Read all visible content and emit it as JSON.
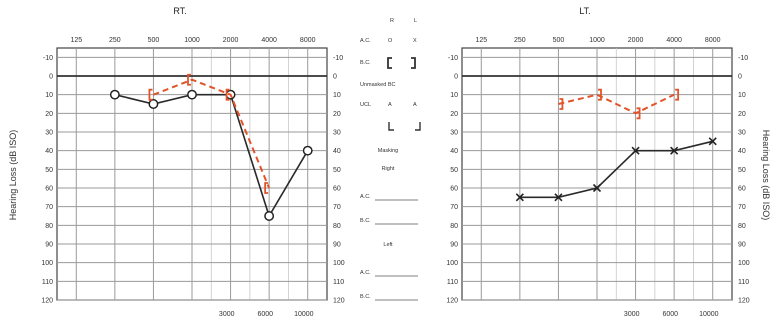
{
  "colors": {
    "bone_conduction": "#e1542a",
    "air_conduction": "#2a2a2a",
    "grid": "#9a9a9a"
  },
  "legend": {
    "col_right": "R",
    "col_left": "L",
    "ac_label": "A.C.",
    "ac_right_symbol": "O",
    "ac_left_symbol": "X",
    "bc_label": "B.C.",
    "bc_right_symbol": "[",
    "bc_left_symbol": "]",
    "unmasked_label": "Unmasked BC",
    "ucl_label": "UCL",
    "aided_right_symbol": "A",
    "aided_left_symbol": "A",
    "masking_title": "Masking",
    "right_label": "Right",
    "left_label": "Left",
    "ac_blank": "A.C.",
    "bc_blank": "B.C."
  },
  "chart_data": [
    {
      "type": "line",
      "title": "RT.",
      "ylabel": "Hearing Loss (dB ISO)",
      "x_top_ticks": [
        "125",
        "250",
        "500",
        "1000",
        "2000",
        "4000",
        "8000"
      ],
      "x_bottom_ticks": [
        "3000",
        "6000",
        "10000"
      ],
      "y_ticks": [
        "-10",
        "0",
        "10",
        "20",
        "30",
        "40",
        "50",
        "60",
        "70",
        "80",
        "90",
        "100",
        "110",
        "120"
      ],
      "right_y_ticks": [
        "-10",
        "0",
        "10",
        "20",
        "30",
        "40",
        "50",
        "60",
        "70",
        "80",
        "90",
        "100",
        "110",
        "120"
      ],
      "ylim": [
        -10,
        120
      ],
      "y_inverted": true,
      "x_scale": "log2",
      "grid": true,
      "series": [
        {
          "id": "ac",
          "marker": "circle",
          "x": [
            250,
            500,
            1000,
            2000,
            4000,
            8000
          ],
          "y": [
            10,
            15,
            10,
            10,
            75,
            40
          ]
        },
        {
          "id": "bc",
          "marker": "bracket",
          "x": [
            500,
            1000,
            2000,
            4000
          ],
          "y": [
            10,
            2,
            10,
            60
          ]
        }
      ]
    },
    {
      "type": "line",
      "title": "LT.",
      "ylabel": "Hearing Loss (dB ISO)",
      "x_top_ticks": [
        "125",
        "250",
        "500",
        "1000",
        "2000",
        "4000",
        "8000"
      ],
      "x_bottom_ticks": [
        "3000",
        "6000",
        "10000"
      ],
      "y_ticks": [
        "-10",
        "0",
        "10",
        "20",
        "30",
        "40",
        "50",
        "60",
        "70",
        "80",
        "90",
        "100",
        "110",
        "120"
      ],
      "right_y_ticks": [
        "-10",
        "0",
        "10",
        "20",
        "30",
        "40",
        "50",
        "60",
        "70",
        "80",
        "90",
        "100",
        "110",
        "120"
      ],
      "ylim": [
        -10,
        120
      ],
      "y_inverted": true,
      "x_scale": "log2",
      "grid": true,
      "series": [
        {
          "id": "ac",
          "marker": "x",
          "x": [
            250,
            500,
            1000,
            2000,
            4000,
            8000
          ],
          "y": [
            65,
            65,
            60,
            40,
            40,
            35
          ]
        },
        {
          "id": "bc",
          "marker": "bracket",
          "x": [
            500,
            1000,
            2000,
            4000
          ],
          "y": [
            15,
            10,
            20,
            10
          ]
        }
      ]
    }
  ]
}
